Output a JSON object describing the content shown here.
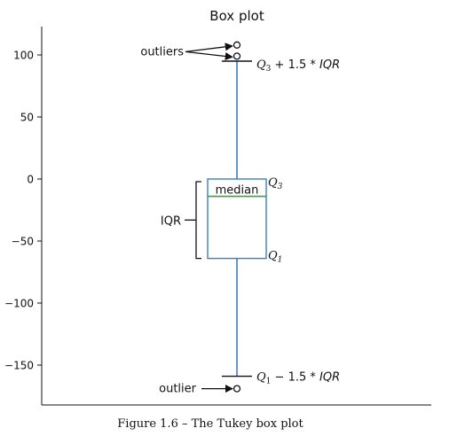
{
  "chart_data": {
    "type": "box",
    "title": "Box plot",
    "xlabel": "",
    "ylabel": "",
    "ylim": [
      -180,
      122
    ],
    "yticks": [
      100,
      50,
      0,
      -50,
      -100,
      -150
    ],
    "ytick_labels": [
      "100",
      "50",
      "0",
      "−50",
      "−100",
      "−150"
    ],
    "grid": false,
    "box": {
      "q1": -64,
      "median": -14,
      "q3": 0,
      "whisker_high": 95,
      "whisker_low": -159,
      "outliers_high": [
        108,
        99
      ],
      "outliers_low": [
        -169
      ]
    },
    "annotations": {
      "outliers": "outliers",
      "outlier": "outlier",
      "median": "median",
      "iqr": "IQR",
      "q3_base": "Q",
      "q3_sub": "3",
      "q1_base": "Q",
      "q1_sub": "1",
      "upper_fence": {
        "base": "Q",
        "sub": "3",
        "rest": " + 1.5 * ",
        "iqr": "IQR"
      },
      "lower_fence": {
        "base": "Q",
        "sub": "1",
        "rest": " − 1.5 * ",
        "iqr": "IQR"
      }
    },
    "colors": {
      "box": "#3b7fc0",
      "median": "#3ea33e",
      "axis": "#111111"
    }
  },
  "caption": "Figure 1.6 – The Tukey box plot"
}
